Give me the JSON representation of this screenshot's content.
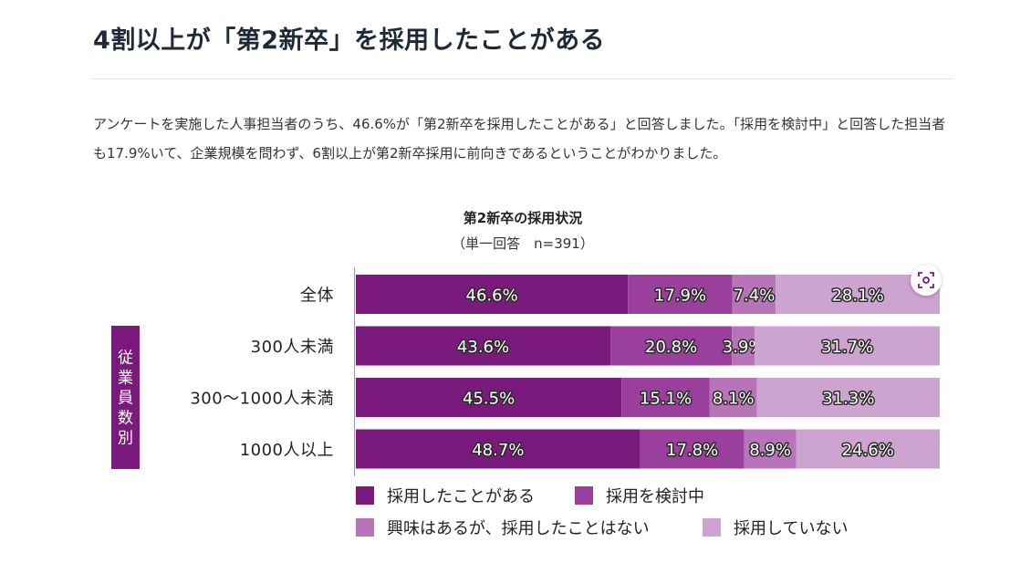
{
  "heading": "4割以上が「第2新卒」を採用したことがある",
  "lead": "アンケートを実施した人事担当者のうち、46.6%が「第2新卒を採用したことがある」と回答しました。「採用を検討中」と回答した担当者も17.9%いて、企業規模を問わず、6割以上が第2新卒採用に前向きであるということがわかりました。",
  "chart_data": {
    "type": "bar",
    "orientation": "horizontal",
    "stacked": true,
    "title": "第2新卒の採用状況",
    "subtitle": "（単一回答　n=391）",
    "group_label": "従業員数別",
    "categories": [
      "全体",
      "300人未満",
      "300〜1000人未満",
      "1000人以上"
    ],
    "series": [
      {
        "name": "採用したことがある",
        "color": "#7b1a7d",
        "values": [
          46.6,
          43.6,
          45.5,
          48.7
        ]
      },
      {
        "name": "採用を検討中",
        "color": "#9a3f9b",
        "values": [
          17.9,
          20.8,
          15.1,
          17.8
        ]
      },
      {
        "name": "興味はあるが、採用したことはない",
        "color": "#b874b9",
        "values": [
          7.4,
          3.9,
          8.1,
          8.9
        ]
      },
      {
        "name": "採用していない",
        "color": "#cda3cf",
        "values": [
          28.1,
          31.7,
          31.3,
          24.6
        ]
      }
    ],
    "value_suffix": "%",
    "xlim": [
      0,
      100
    ],
    "grid": false,
    "legend_position": "bottom"
  },
  "icons": {
    "lens": "lens-search-icon"
  }
}
